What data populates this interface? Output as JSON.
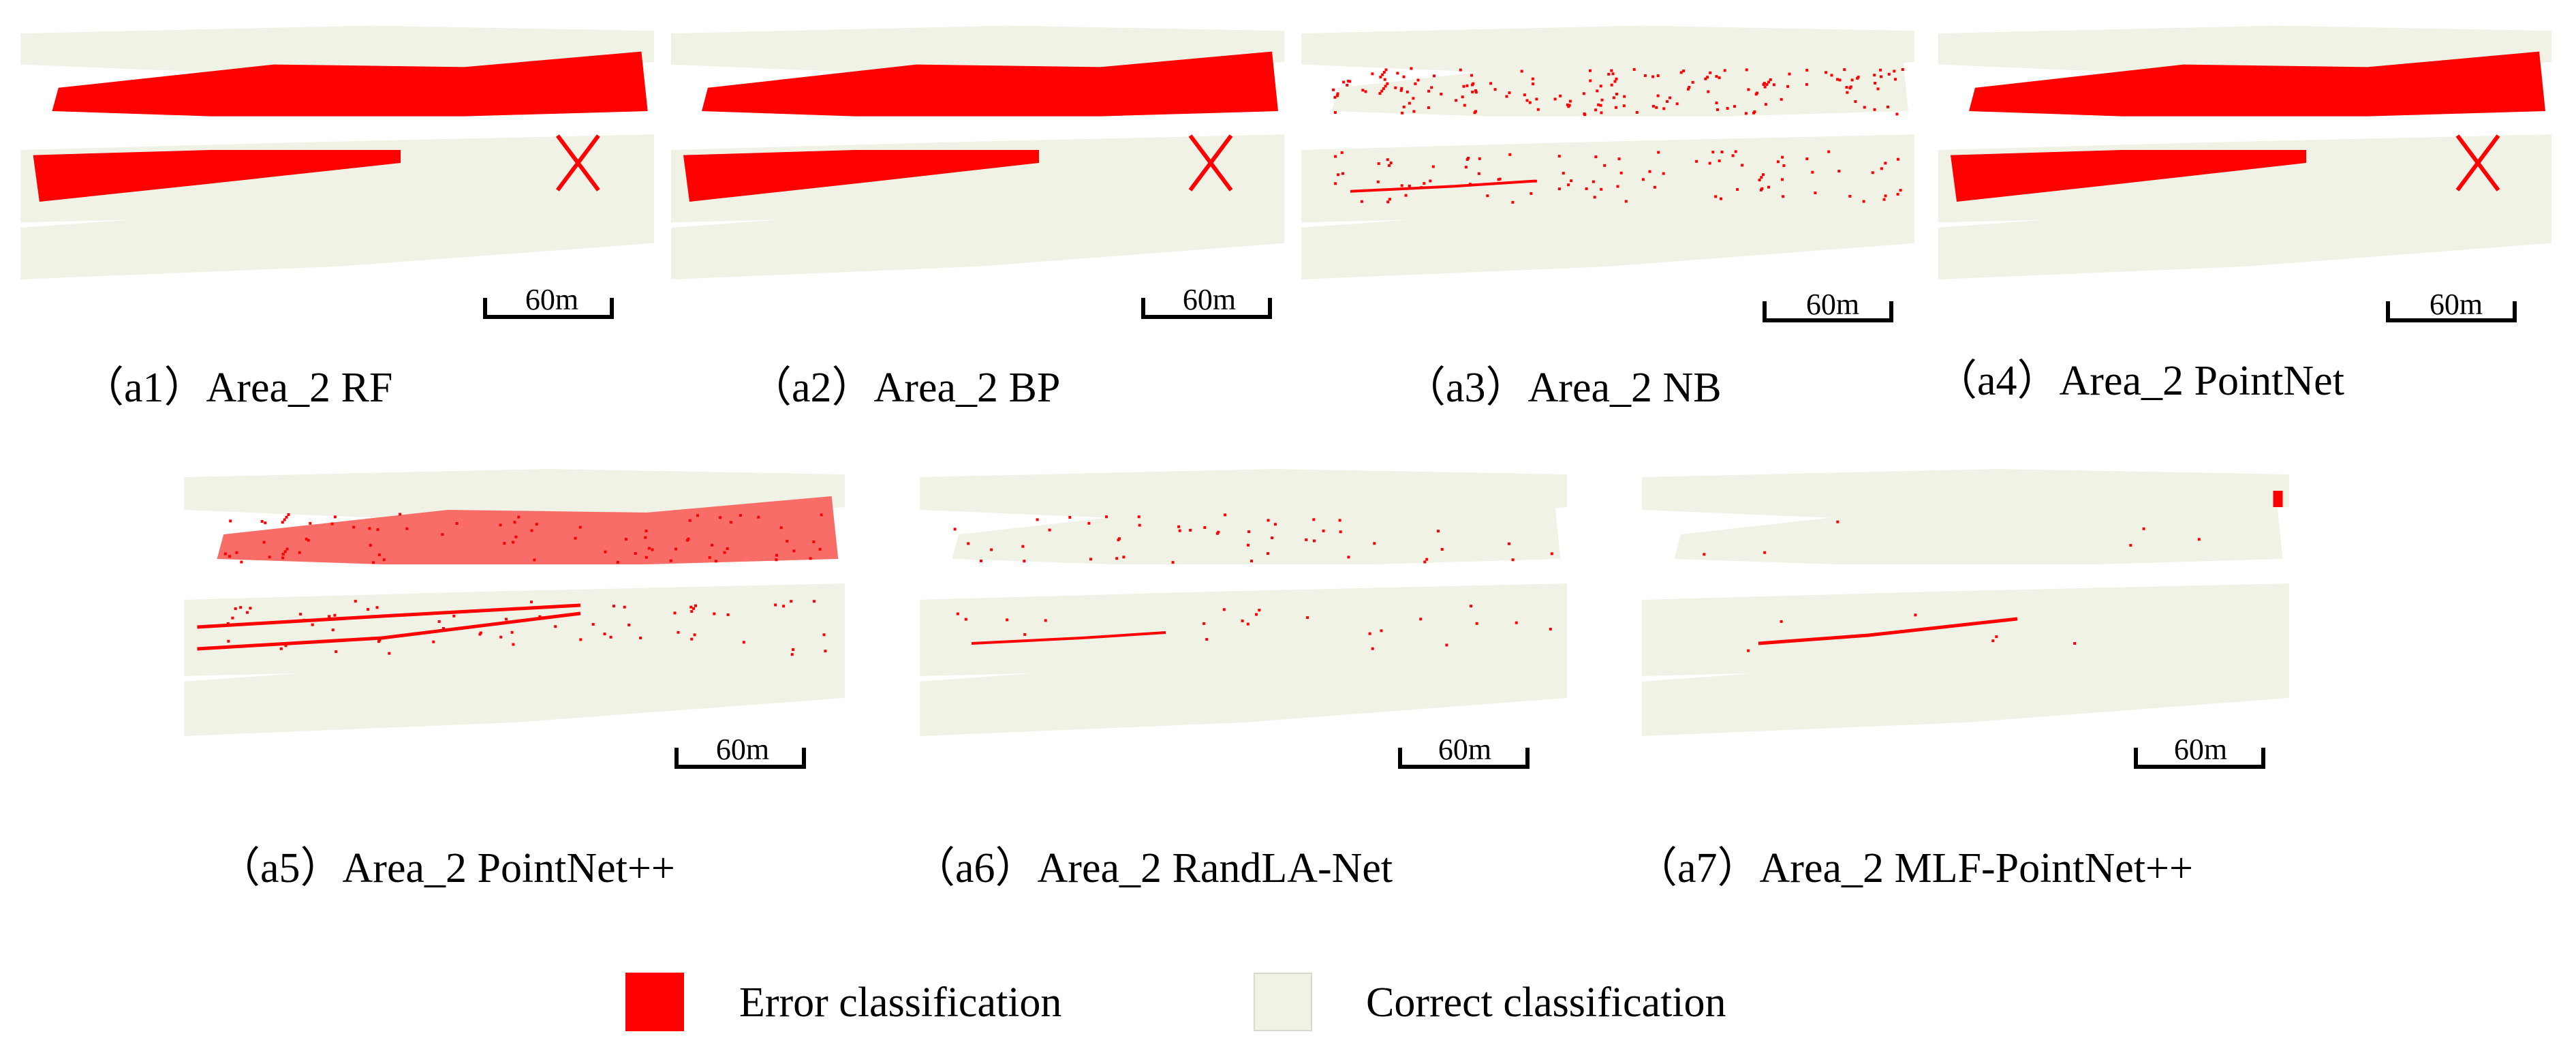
{
  "colors": {
    "error": "#ff0000",
    "correct": "#f1f2e6"
  },
  "scale_bar_label": "60m",
  "panels": [
    {
      "id": "a1",
      "caption": "（a1）Area_2 RF",
      "error_level": "high"
    },
    {
      "id": "a2",
      "caption": "（a2）Area_2 BP",
      "error_level": "high"
    },
    {
      "id": "a3",
      "caption": "（a3）Area_2 NB",
      "error_level": "sparse"
    },
    {
      "id": "a4",
      "caption": "（a4）Area_2 PointNet",
      "error_level": "high"
    },
    {
      "id": "a5",
      "caption": "（a5）Area_2 PointNet++",
      "error_level": "medium"
    },
    {
      "id": "a6",
      "caption": "（a6）Area_2 RandLA-Net",
      "error_level": "low"
    },
    {
      "id": "a7",
      "caption": "（a7）Area_2 MLF-PointNet++",
      "error_level": "minimal"
    }
  ],
  "legend": {
    "error_label": "Error classification",
    "correct_label": "Correct classification"
  }
}
